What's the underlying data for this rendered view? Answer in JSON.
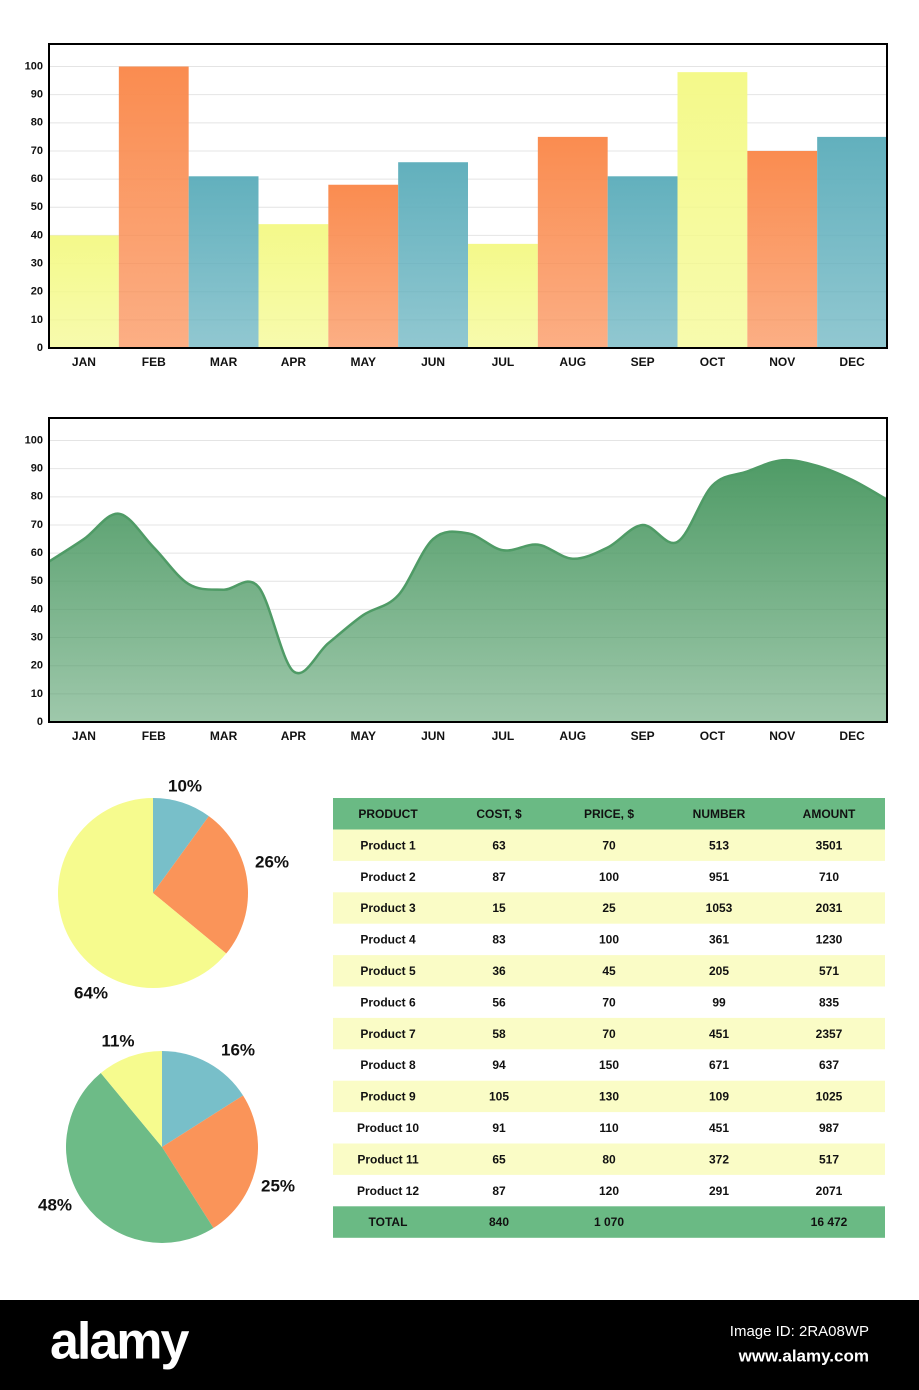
{
  "chart_data": [
    {
      "type": "bar",
      "categories": [
        "JAN",
        "FEB",
        "MAR",
        "APR",
        "MAY",
        "JUN",
        "JUL",
        "AUG",
        "SEP",
        "OCT",
        "NOV",
        "DEC"
      ],
      "values": [
        40,
        100,
        61,
        44,
        58,
        66,
        37,
        75,
        61,
        98,
        70,
        75
      ],
      "colors": [
        "#f4f98a",
        "#fa8c50",
        "#62b0bd",
        "#f4f98a",
        "#fa8c50",
        "#62b0bd",
        "#f4f98a",
        "#fa8c50",
        "#62b0bd",
        "#f4f98a",
        "#fa8c50",
        "#62b0bd"
      ],
      "ylim": [
        0,
        108
      ],
      "yticks": [
        0,
        10,
        20,
        30,
        40,
        50,
        60,
        70,
        80,
        90,
        100
      ],
      "grid": true
    },
    {
      "type": "area",
      "categories": [
        null,
        "JAN",
        null,
        "FEB",
        null,
        "MAR",
        null,
        "APR",
        null,
        "MAY",
        null,
        "JUN",
        null,
        "JUL",
        null,
        "AUG",
        null,
        "SEP",
        null,
        "OCT",
        null,
        "NOV",
        null,
        "DEC",
        null
      ],
      "values": [
        57,
        65,
        74,
        62,
        49,
        47,
        48,
        18,
        28,
        38,
        45,
        65,
        67,
        61,
        63,
        58,
        62,
        70,
        64,
        84,
        89,
        93,
        91,
        86,
        79
      ],
      "color": "#4f9b66",
      "ylim": [
        0,
        108
      ],
      "yticks": [
        0,
        10,
        20,
        30,
        40,
        50,
        60,
        70,
        80,
        90,
        100
      ],
      "grid": true
    },
    {
      "type": "pie",
      "values": [
        10,
        26,
        64
      ],
      "value_labels": [
        "10%",
        "26%",
        "64%"
      ],
      "colors": [
        "#78bfc9",
        "#fa9459",
        "#f6fb8e"
      ]
    },
    {
      "type": "pie",
      "values": [
        16,
        25,
        48,
        11
      ],
      "value_labels": [
        "16%",
        "25%",
        "48%",
        "11%"
      ],
      "colors": [
        "#78bfc9",
        "#fa9459",
        "#6dbb87",
        "#f6fb8e"
      ]
    }
  ],
  "table": {
    "header": [
      "PRODUCT",
      "COST, $",
      "PRICE, $",
      "NUMBER",
      "AMOUNT"
    ],
    "rows": [
      [
        "Product 1",
        63,
        70,
        513,
        3501
      ],
      [
        "Product 2",
        87,
        100,
        951,
        710
      ],
      [
        "Product 3",
        15,
        25,
        1053,
        2031
      ],
      [
        "Product 4",
        83,
        100,
        361,
        1230
      ],
      [
        "Product 5",
        36,
        45,
        205,
        571
      ],
      [
        "Product 6",
        56,
        70,
        99,
        835
      ],
      [
        "Product 7",
        58,
        70,
        451,
        2357
      ],
      [
        "Product 8",
        94,
        150,
        671,
        637
      ],
      [
        "Product 9",
        105,
        130,
        109,
        1025
      ],
      [
        "Product 10",
        91,
        110,
        451,
        987
      ],
      [
        "Product 11",
        65,
        80,
        372,
        517
      ],
      [
        "Product 12",
        87,
        120,
        291,
        2071
      ]
    ],
    "total": [
      "TOTAL",
      "840",
      "1 070",
      null,
      "16 472"
    ]
  },
  "footer": {
    "logo": "alamy",
    "image_id": "Image ID: 2RA08WP",
    "url": "www.alamy.com"
  }
}
